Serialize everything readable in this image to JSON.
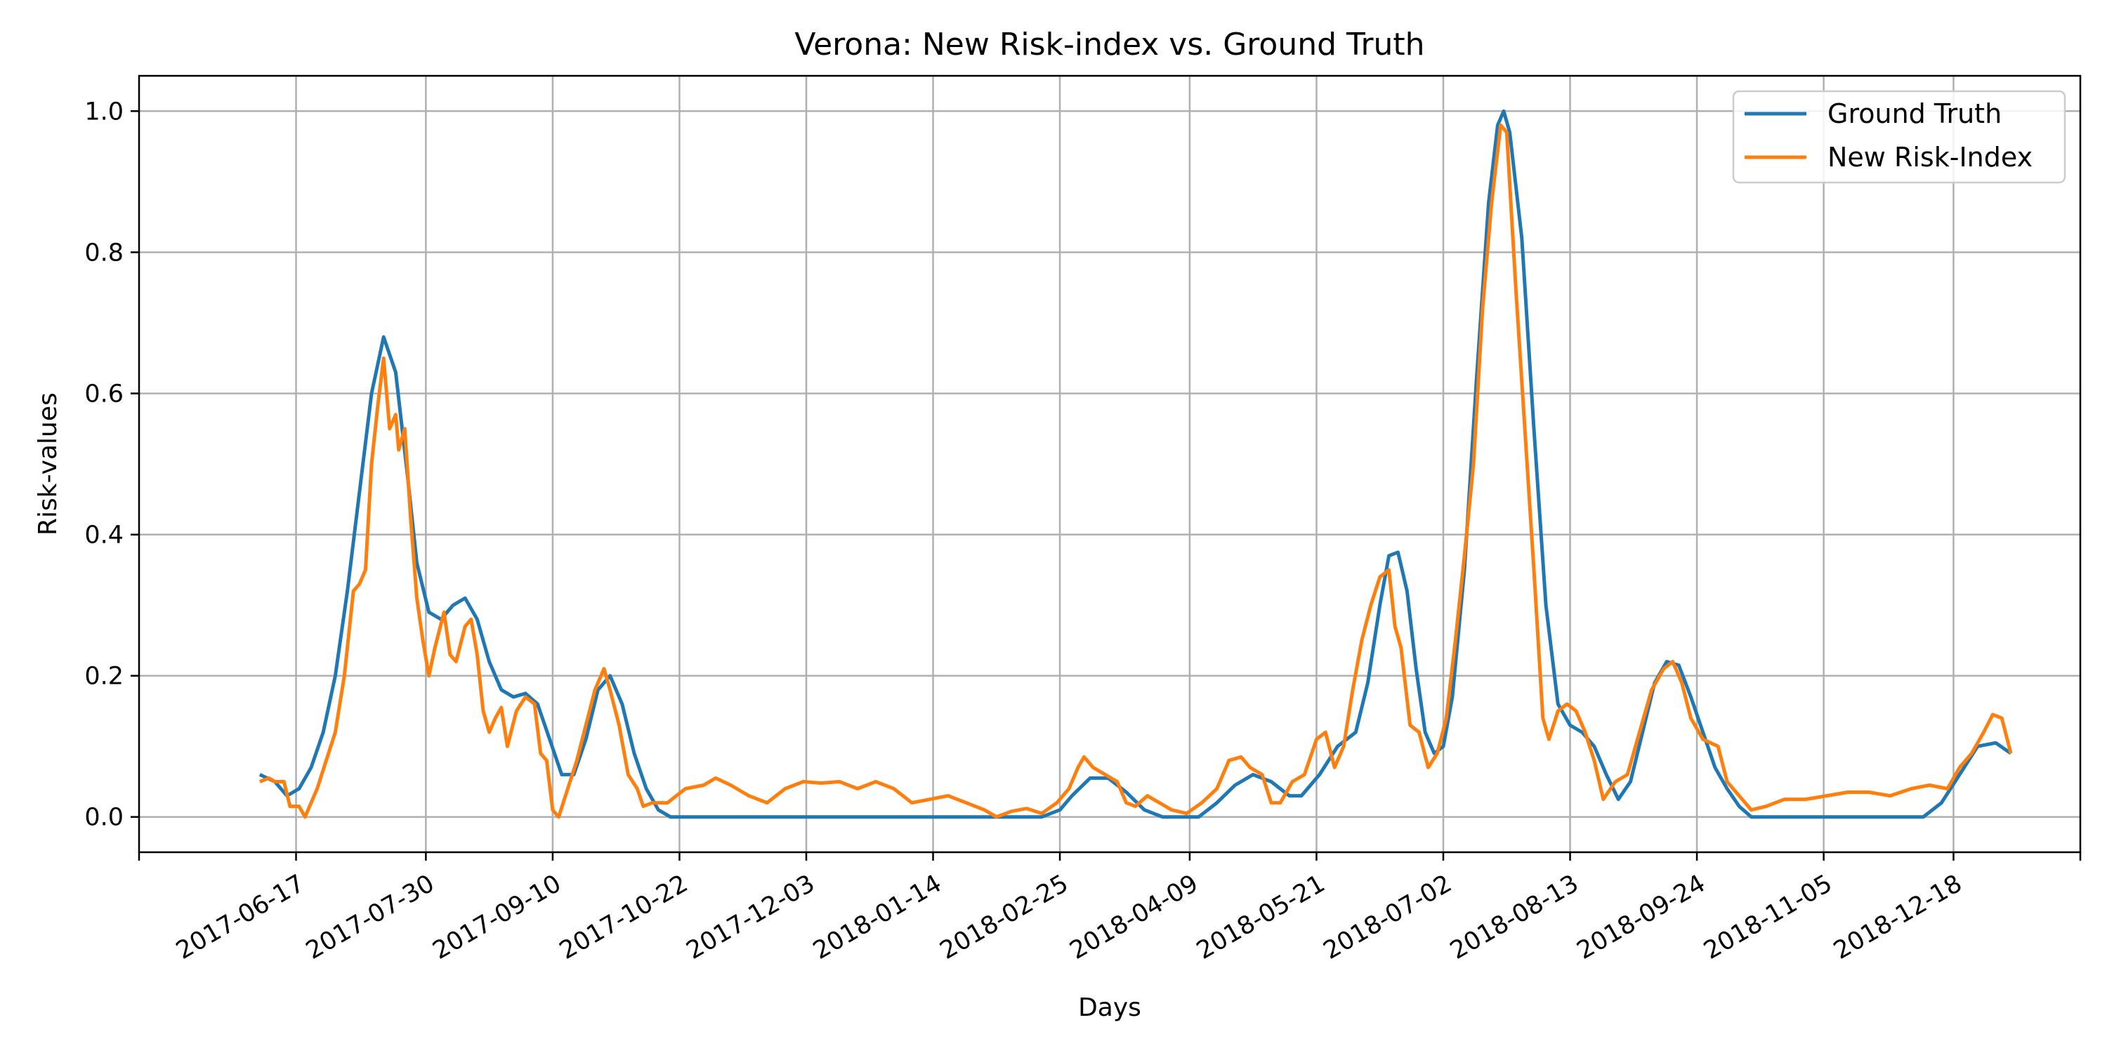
{
  "chart_data": {
    "type": "line",
    "title": "Verona: New Risk-index vs. Ground Truth",
    "xlabel": "Days",
    "ylabel": "Risk-values",
    "x_ticks": [
      "2017-06-17",
      "2017-07-30",
      "2017-09-10",
      "2017-10-22",
      "2017-12-03",
      "2018-01-14",
      "2018-02-25",
      "2018-04-09",
      "2018-05-21",
      "2018-07-02",
      "2018-08-13",
      "2018-09-24",
      "2018-11-05",
      "2018-12-18"
    ],
    "xlim": [
      "2017-04-26",
      "2019-01-29"
    ],
    "y_ticks": [
      "0.0",
      "0.2",
      "0.4",
      "0.6",
      "0.8",
      "1.0"
    ],
    "ylim": [
      -0.05,
      1.05
    ],
    "grid": true,
    "legend_position": "top-right",
    "series": [
      {
        "name": "Ground Truth",
        "color": "#1f77b4",
        "points": [
          [
            "2017-06-05",
            0.06
          ],
          [
            "2017-06-10",
            0.05
          ],
          [
            "2017-06-14",
            0.03
          ],
          [
            "2017-06-18",
            0.04
          ],
          [
            "2017-06-22",
            0.07
          ],
          [
            "2017-06-26",
            0.12
          ],
          [
            "2017-06-30",
            0.2
          ],
          [
            "2017-07-04",
            0.32
          ],
          [
            "2017-07-08",
            0.46
          ],
          [
            "2017-07-12",
            0.6
          ],
          [
            "2017-07-16",
            0.68
          ],
          [
            "2017-07-20",
            0.63
          ],
          [
            "2017-07-24",
            0.48
          ],
          [
            "2017-07-27",
            0.36
          ],
          [
            "2017-07-31",
            0.29
          ],
          [
            "2017-08-04",
            0.28
          ],
          [
            "2017-08-08",
            0.3
          ],
          [
            "2017-08-12",
            0.31
          ],
          [
            "2017-08-16",
            0.28
          ],
          [
            "2017-08-20",
            0.22
          ],
          [
            "2017-08-24",
            0.18
          ],
          [
            "2017-08-28",
            0.17
          ],
          [
            "2017-09-01",
            0.175
          ],
          [
            "2017-09-05",
            0.16
          ],
          [
            "2017-09-09",
            0.11
          ],
          [
            "2017-09-13",
            0.06
          ],
          [
            "2017-09-17",
            0.06
          ],
          [
            "2017-09-21",
            0.11
          ],
          [
            "2017-09-25",
            0.18
          ],
          [
            "2017-09-29",
            0.2
          ],
          [
            "2017-10-03",
            0.16
          ],
          [
            "2017-10-07",
            0.09
          ],
          [
            "2017-10-11",
            0.04
          ],
          [
            "2017-10-15",
            0.01
          ],
          [
            "2017-10-19",
            0.0
          ],
          [
            "2018-02-19",
            0.0
          ],
          [
            "2018-02-25",
            0.01
          ],
          [
            "2018-03-01",
            0.03
          ],
          [
            "2018-03-07",
            0.055
          ],
          [
            "2018-03-13",
            0.055
          ],
          [
            "2018-03-19",
            0.035
          ],
          [
            "2018-03-25",
            0.01
          ],
          [
            "2018-03-31",
            0.0
          ],
          [
            "2018-04-12",
            0.0
          ],
          [
            "2018-04-18",
            0.02
          ],
          [
            "2018-04-24",
            0.045
          ],
          [
            "2018-04-30",
            0.06
          ],
          [
            "2018-05-06",
            0.05
          ],
          [
            "2018-05-12",
            0.03
          ],
          [
            "2018-05-16",
            0.03
          ],
          [
            "2018-05-22",
            0.06
          ],
          [
            "2018-05-28",
            0.1
          ],
          [
            "2018-06-03",
            0.12
          ],
          [
            "2018-06-07",
            0.19
          ],
          [
            "2018-06-11",
            0.3
          ],
          [
            "2018-06-14",
            0.37
          ],
          [
            "2018-06-17",
            0.375
          ],
          [
            "2018-06-20",
            0.32
          ],
          [
            "2018-06-23",
            0.21
          ],
          [
            "2018-06-26",
            0.12
          ],
          [
            "2018-06-29",
            0.09
          ],
          [
            "2018-07-02",
            0.1
          ],
          [
            "2018-07-05",
            0.17
          ],
          [
            "2018-07-09",
            0.35
          ],
          [
            "2018-07-13",
            0.62
          ],
          [
            "2018-07-17",
            0.87
          ],
          [
            "2018-07-20",
            0.98
          ],
          [
            "2018-07-22",
            1.0
          ],
          [
            "2018-07-24",
            0.97
          ],
          [
            "2018-07-28",
            0.82
          ],
          [
            "2018-08-01",
            0.55
          ],
          [
            "2018-08-05",
            0.3
          ],
          [
            "2018-08-09",
            0.16
          ],
          [
            "2018-08-13",
            0.13
          ],
          [
            "2018-08-17",
            0.12
          ],
          [
            "2018-08-21",
            0.1
          ],
          [
            "2018-08-25",
            0.06
          ],
          [
            "2018-08-29",
            0.025
          ],
          [
            "2018-09-02",
            0.05
          ],
          [
            "2018-09-06",
            0.12
          ],
          [
            "2018-09-10",
            0.19
          ],
          [
            "2018-09-14",
            0.22
          ],
          [
            "2018-09-18",
            0.215
          ],
          [
            "2018-09-22",
            0.17
          ],
          [
            "2018-09-26",
            0.12
          ],
          [
            "2018-09-30",
            0.07
          ],
          [
            "2018-10-04",
            0.04
          ],
          [
            "2018-10-08",
            0.015
          ],
          [
            "2018-10-12",
            0.0
          ],
          [
            "2018-12-08",
            0.0
          ],
          [
            "2018-12-14",
            0.02
          ],
          [
            "2018-12-20",
            0.06
          ],
          [
            "2018-12-26",
            0.1
          ],
          [
            "2019-01-01",
            0.105
          ],
          [
            "2019-01-06",
            0.09
          ]
        ]
      },
      {
        "name": "New Risk-Index",
        "color": "#ff7f0e",
        "points": [
          [
            "2017-06-05",
            0.05
          ],
          [
            "2017-06-08",
            0.055
          ],
          [
            "2017-06-10",
            0.05
          ],
          [
            "2017-06-13",
            0.05
          ],
          [
            "2017-06-15",
            0.015
          ],
          [
            "2017-06-18",
            0.015
          ],
          [
            "2017-06-20",
            0.0
          ],
          [
            "2017-06-24",
            0.04
          ],
          [
            "2017-06-27",
            0.08
          ],
          [
            "2017-06-30",
            0.12
          ],
          [
            "2017-07-03",
            0.2
          ],
          [
            "2017-07-06",
            0.32
          ],
          [
            "2017-07-08",
            0.33
          ],
          [
            "2017-07-10",
            0.35
          ],
          [
            "2017-07-12",
            0.5
          ],
          [
            "2017-07-14",
            0.58
          ],
          [
            "2017-07-16",
            0.65
          ],
          [
            "2017-07-18",
            0.55
          ],
          [
            "2017-07-20",
            0.57
          ],
          [
            "2017-07-21",
            0.52
          ],
          [
            "2017-07-23",
            0.55
          ],
          [
            "2017-07-25",
            0.42
          ],
          [
            "2017-07-27",
            0.31
          ],
          [
            "2017-07-29",
            0.25
          ],
          [
            "2017-07-31",
            0.2
          ],
          [
            "2017-08-02",
            0.24
          ],
          [
            "2017-08-05",
            0.29
          ],
          [
            "2017-08-07",
            0.23
          ],
          [
            "2017-08-09",
            0.22
          ],
          [
            "2017-08-12",
            0.27
          ],
          [
            "2017-08-14",
            0.28
          ],
          [
            "2017-08-16",
            0.23
          ],
          [
            "2017-08-18",
            0.15
          ],
          [
            "2017-08-20",
            0.12
          ],
          [
            "2017-08-22",
            0.14
          ],
          [
            "2017-08-24",
            0.155
          ],
          [
            "2017-08-26",
            0.1
          ],
          [
            "2017-08-29",
            0.15
          ],
          [
            "2017-09-01",
            0.17
          ],
          [
            "2017-09-04",
            0.16
          ],
          [
            "2017-09-06",
            0.09
          ],
          [
            "2017-09-08",
            0.08
          ],
          [
            "2017-09-10",
            0.01
          ],
          [
            "2017-09-12",
            0.0
          ],
          [
            "2017-09-15",
            0.04
          ],
          [
            "2017-09-18",
            0.08
          ],
          [
            "2017-09-21",
            0.13
          ],
          [
            "2017-09-24",
            0.18
          ],
          [
            "2017-09-27",
            0.21
          ],
          [
            "2017-09-29",
            0.18
          ],
          [
            "2017-10-02",
            0.13
          ],
          [
            "2017-10-05",
            0.06
          ],
          [
            "2017-10-08",
            0.04
          ],
          [
            "2017-10-10",
            0.015
          ],
          [
            "2017-10-13",
            0.02
          ],
          [
            "2017-10-18",
            0.02
          ],
          [
            "2017-10-24",
            0.04
          ],
          [
            "2017-10-30",
            0.045
          ],
          [
            "2017-11-03",
            0.055
          ],
          [
            "2017-11-08",
            0.045
          ],
          [
            "2017-11-14",
            0.03
          ],
          [
            "2017-11-20",
            0.02
          ],
          [
            "2017-11-26",
            0.04
          ],
          [
            "2017-12-02",
            0.05
          ],
          [
            "2017-12-08",
            0.048
          ],
          [
            "2017-12-14",
            0.05
          ],
          [
            "2017-12-20",
            0.04
          ],
          [
            "2017-12-26",
            0.05
          ],
          [
            "2018-01-01",
            0.04
          ],
          [
            "2018-01-07",
            0.02
          ],
          [
            "2018-01-13",
            0.025
          ],
          [
            "2018-01-19",
            0.03
          ],
          [
            "2018-01-25",
            0.02
          ],
          [
            "2018-01-31",
            0.01
          ],
          [
            "2018-02-04",
            0.0
          ],
          [
            "2018-02-09",
            0.008
          ],
          [
            "2018-02-14",
            0.012
          ],
          [
            "2018-02-19",
            0.005
          ],
          [
            "2018-02-24",
            0.02
          ],
          [
            "2018-02-28",
            0.04
          ],
          [
            "2018-03-03",
            0.07
          ],
          [
            "2018-03-05",
            0.085
          ],
          [
            "2018-03-08",
            0.07
          ],
          [
            "2018-03-12",
            0.06
          ],
          [
            "2018-03-16",
            0.05
          ],
          [
            "2018-03-19",
            0.02
          ],
          [
            "2018-03-22",
            0.015
          ],
          [
            "2018-03-26",
            0.03
          ],
          [
            "2018-03-30",
            0.02
          ],
          [
            "2018-04-03",
            0.01
          ],
          [
            "2018-04-08",
            0.005
          ],
          [
            "2018-04-13",
            0.02
          ],
          [
            "2018-04-18",
            0.04
          ],
          [
            "2018-04-22",
            0.08
          ],
          [
            "2018-04-26",
            0.085
          ],
          [
            "2018-04-29",
            0.07
          ],
          [
            "2018-05-03",
            0.06
          ],
          [
            "2018-05-06",
            0.02
          ],
          [
            "2018-05-09",
            0.02
          ],
          [
            "2018-05-13",
            0.05
          ],
          [
            "2018-05-17",
            0.06
          ],
          [
            "2018-05-21",
            0.11
          ],
          [
            "2018-05-24",
            0.12
          ],
          [
            "2018-05-27",
            0.07
          ],
          [
            "2018-05-30",
            0.1
          ],
          [
            "2018-06-02",
            0.18
          ],
          [
            "2018-06-05",
            0.25
          ],
          [
            "2018-06-08",
            0.3
          ],
          [
            "2018-06-11",
            0.34
          ],
          [
            "2018-06-14",
            0.35
          ],
          [
            "2018-06-16",
            0.27
          ],
          [
            "2018-06-18",
            0.24
          ],
          [
            "2018-06-21",
            0.13
          ],
          [
            "2018-06-24",
            0.12
          ],
          [
            "2018-06-27",
            0.07
          ],
          [
            "2018-06-30",
            0.09
          ],
          [
            "2018-07-03",
            0.14
          ],
          [
            "2018-07-06",
            0.25
          ],
          [
            "2018-07-09",
            0.37
          ],
          [
            "2018-07-12",
            0.5
          ],
          [
            "2018-07-15",
            0.72
          ],
          [
            "2018-07-18",
            0.87
          ],
          [
            "2018-07-21",
            0.98
          ],
          [
            "2018-07-23",
            0.97
          ],
          [
            "2018-07-26",
            0.75
          ],
          [
            "2018-07-29",
            0.55
          ],
          [
            "2018-08-01",
            0.35
          ],
          [
            "2018-08-04",
            0.14
          ],
          [
            "2018-08-06",
            0.11
          ],
          [
            "2018-08-09",
            0.15
          ],
          [
            "2018-08-12",
            0.16
          ],
          [
            "2018-08-15",
            0.15
          ],
          [
            "2018-08-18",
            0.12
          ],
          [
            "2018-08-21",
            0.08
          ],
          [
            "2018-08-24",
            0.025
          ],
          [
            "2018-08-28",
            0.05
          ],
          [
            "2018-09-01",
            0.06
          ],
          [
            "2018-09-05",
            0.12
          ],
          [
            "2018-09-09",
            0.18
          ],
          [
            "2018-09-13",
            0.21
          ],
          [
            "2018-09-16",
            0.22
          ],
          [
            "2018-09-19",
            0.19
          ],
          [
            "2018-09-22",
            0.14
          ],
          [
            "2018-09-26",
            0.11
          ],
          [
            "2018-10-01",
            0.1
          ],
          [
            "2018-10-04",
            0.05
          ],
          [
            "2018-10-08",
            0.03
          ],
          [
            "2018-10-12",
            0.01
          ],
          [
            "2018-10-17",
            0.015
          ],
          [
            "2018-10-23",
            0.025
          ],
          [
            "2018-10-30",
            0.025
          ],
          [
            "2018-11-06",
            0.03
          ],
          [
            "2018-11-13",
            0.035
          ],
          [
            "2018-11-20",
            0.035
          ],
          [
            "2018-11-27",
            0.03
          ],
          [
            "2018-12-04",
            0.04
          ],
          [
            "2018-12-10",
            0.045
          ],
          [
            "2018-12-16",
            0.04
          ],
          [
            "2018-12-20",
            0.07
          ],
          [
            "2018-12-24",
            0.09
          ],
          [
            "2018-12-28",
            0.12
          ],
          [
            "2018-12-31",
            0.145
          ],
          [
            "2019-01-03",
            0.14
          ],
          [
            "2019-01-06",
            0.09
          ]
        ]
      }
    ]
  }
}
